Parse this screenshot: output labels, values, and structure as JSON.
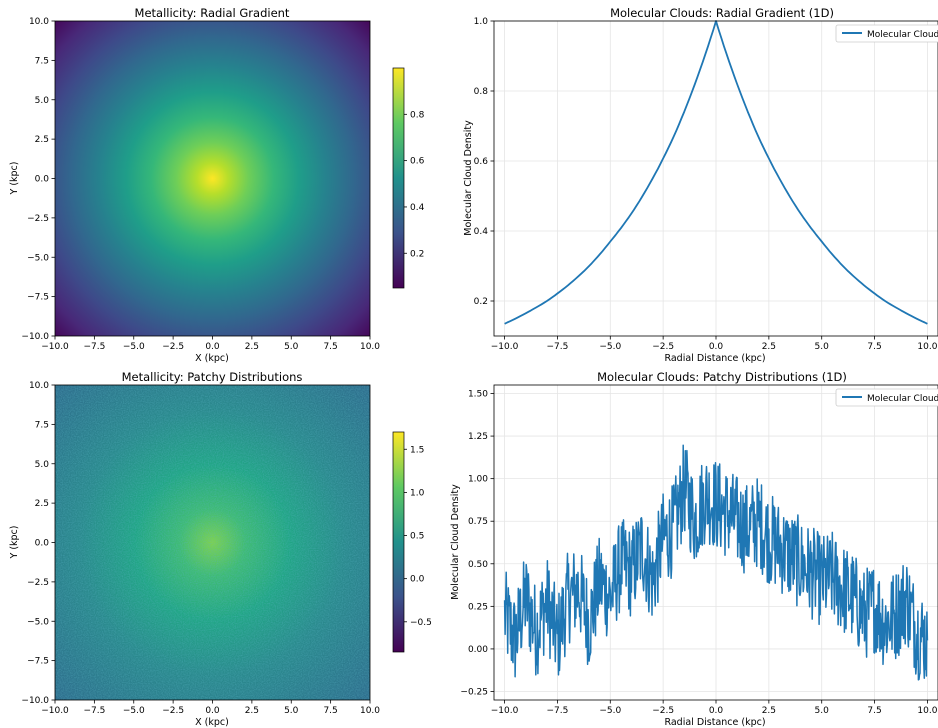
{
  "chart_data": [
    {
      "type": "heatmap",
      "title": "Metallicity: Radial Gradient",
      "xlabel": "X (kpc)",
      "ylabel": "Y (kpc)",
      "xlim": [
        -10,
        10
      ],
      "ylim": [
        -10,
        10
      ],
      "x_ticks": [
        "−10.0",
        "−7.5",
        "−5.0",
        "−2.5",
        "0.0",
        "2.5",
        "5.0",
        "7.5",
        "10.0"
      ],
      "y_ticks": [
        "−10.0",
        "−7.5",
        "−5.0",
        "−2.5",
        "0.0",
        "2.5",
        "5.0",
        "7.5",
        "10.0"
      ],
      "colormap": "viridis",
      "pattern": "radial",
      "center_value": 1.0,
      "edge_value": 0.05,
      "colorbar": {
        "vmin": 0.05,
        "vmax": 1.0,
        "ticks": [
          "0.2",
          "0.4",
          "0.6",
          "0.8"
        ]
      }
    },
    {
      "type": "line",
      "title": "Molecular Clouds: Radial Gradient (1D)",
      "xlabel": "Radial Distance (kpc)",
      "ylabel": "Molecular Cloud Density",
      "xlim": [
        -10,
        10
      ],
      "ylim": [
        0.1,
        1.0
      ],
      "x_ticks": [
        "−10.0",
        "−7.5",
        "−5.0",
        "−2.5",
        "0.0",
        "2.5",
        "5.0",
        "7.5",
        "10.0"
      ],
      "y_ticks": [
        "0.2",
        "0.4",
        "0.6",
        "0.8",
        "1.0"
      ],
      "grid": true,
      "legend": "top-right",
      "series": [
        {
          "name": "Molecular Clouds",
          "color": "#1f77b4",
          "x": [
            -10,
            -9,
            -8,
            -7,
            -6,
            -5,
            -4,
            -3,
            -2,
            -1,
            0,
            1,
            2,
            3,
            4,
            5,
            6,
            7,
            8,
            9,
            10
          ],
          "values": [
            0.135,
            0.165,
            0.2,
            0.245,
            0.3,
            0.37,
            0.45,
            0.55,
            0.67,
            0.82,
            1.0,
            0.82,
            0.67,
            0.55,
            0.45,
            0.37,
            0.3,
            0.245,
            0.2,
            0.165,
            0.135
          ]
        }
      ]
    },
    {
      "type": "heatmap",
      "title": "Metallicity: Patchy Distributions",
      "xlabel": "X (kpc)",
      "ylabel": "Y (kpc)",
      "xlim": [
        -10,
        10
      ],
      "ylim": [
        -10,
        10
      ],
      "x_ticks": [
        "−10.0",
        "−7.5",
        "−5.0",
        "−2.5",
        "0.0",
        "2.5",
        "5.0",
        "7.5",
        "10.0"
      ],
      "y_ticks": [
        "−10.0",
        "−7.5",
        "−5.0",
        "−2.5",
        "0.0",
        "2.5",
        "5.0",
        "7.5",
        "10.0"
      ],
      "colormap": "viridis",
      "pattern": "radial plus noise",
      "center_value": 1.0,
      "edge_value": 0.15,
      "noise_amplitude": 0.4,
      "colorbar": {
        "vmin": -0.85,
        "vmax": 1.7,
        "ticks": [
          "−0.5",
          "0.0",
          "0.5",
          "1.0",
          "1.5"
        ]
      }
    },
    {
      "type": "line",
      "title": "Molecular Clouds: Patchy Distributions (1D)",
      "xlabel": "Radial Distance (kpc)",
      "ylabel": "Molecular Cloud Density",
      "xlim": [
        -10,
        10
      ],
      "ylim": [
        -0.3,
        1.55
      ],
      "x_ticks": [
        "−10.0",
        "−7.5",
        "−5.0",
        "−2.5",
        "0.0",
        "2.5",
        "5.0",
        "7.5",
        "10.0"
      ],
      "y_ticks": [
        "−0.25",
        "0.00",
        "0.25",
        "0.50",
        "0.75",
        "1.00",
        "1.25",
        "1.50"
      ],
      "grid": true,
      "legend": "top-right",
      "series": [
        {
          "name": "Molecular Clouds",
          "color": "#1f77b4",
          "x": [
            -10,
            -9.5,
            -9,
            -8.5,
            -8,
            -7.5,
            -7,
            -6.5,
            -6,
            -5.5,
            -5,
            -4.5,
            -4,
            -3.5,
            -3,
            -2.5,
            -2,
            -1.5,
            -1,
            -0.5,
            0,
            0.5,
            1,
            1.5,
            2,
            2.5,
            3,
            3.5,
            4,
            4.5,
            5,
            5.5,
            6,
            6.5,
            7,
            7.5,
            8,
            8.5,
            9,
            9.5,
            10
          ],
          "values": [
            0.2,
            0.05,
            0.3,
            0.1,
            0.28,
            0.05,
            0.3,
            0.35,
            0.15,
            0.4,
            0.3,
            0.5,
            0.45,
            0.6,
            0.4,
            0.65,
            0.7,
            0.95,
            0.75,
            0.9,
            0.85,
            0.8,
            0.75,
            0.7,
            0.75,
            0.65,
            0.6,
            0.55,
            0.5,
            0.45,
            0.4,
            0.42,
            0.35,
            0.3,
            0.2,
            0.25,
            0.15,
            0.2,
            0.3,
            0.1,
            0.05
          ]
        }
      ]
    }
  ]
}
